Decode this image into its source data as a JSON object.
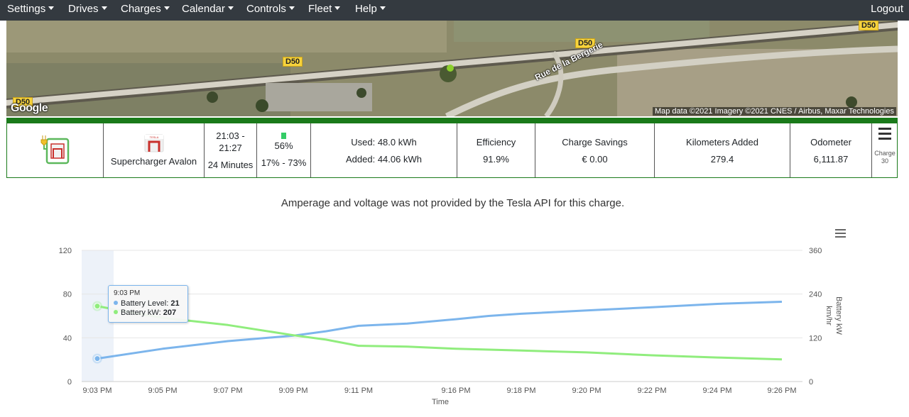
{
  "nav": {
    "items": [
      {
        "label": "Settings"
      },
      {
        "label": "Drives"
      },
      {
        "label": "Charges"
      },
      {
        "label": "Calendar"
      },
      {
        "label": "Controls"
      },
      {
        "label": "Fleet"
      },
      {
        "label": "Help"
      }
    ],
    "logout": "Logout"
  },
  "map": {
    "road_labels": [
      "D50",
      "D50",
      "D50",
      "D50"
    ],
    "street_label": "Rue de la Bergerie",
    "attribution": "Map data ©2021 Imagery ©2021 CNES / Airbus, Maxar Technologies",
    "logo": "Google"
  },
  "charge": {
    "charger_icon": "plug-charger-icon",
    "location_icon": "tesla-supercharger-icon",
    "location": "Supercharger Avalon",
    "time_range": "21:03 - 21:27",
    "duration": "24 Minutes",
    "battery_icon": "battery-icon",
    "battery_pct": "56%",
    "battery_range": "17% - 73%",
    "used": "Used: 48.0 kWh",
    "added": "Added: 44.06 kWh",
    "efficiency_label": "Efficiency",
    "efficiency_value": "91.9%",
    "savings_label": "Charge Savings",
    "savings_value": "€ 0.00",
    "km_label": "Kilometers Added",
    "km_value": "279.4",
    "odometer_label": "Odometer",
    "odometer_value": "6,111.87",
    "menu_icon": "hamburger-menu-icon",
    "charge_label": "Charge",
    "charge_number": "30"
  },
  "notice": "Amperage and voltage was not provided by the Tesla API for this charge.",
  "chart_menu_icon": "hamburger-menu-icon",
  "tooltip": {
    "time": "9:03 PM",
    "row1_label": "Battery Level: ",
    "row1_value": "21",
    "row2_label": "Battery kW: ",
    "row2_value": "207"
  },
  "colors": {
    "battery_level": "#7cb5ec",
    "battery_kw": "#90ed7d",
    "nav_bg": "#343a40",
    "accent_green": "#1a7a1a"
  },
  "chart_data": {
    "type": "line",
    "xlabel": "Time",
    "x_ticks": [
      "9:03 PM",
      "9:05 PM",
      "9:07 PM",
      "9:09 PM",
      "9:11 PM",
      "9:16 PM",
      "9:18 PM",
      "9:20 PM",
      "9:22 PM",
      "9:24 PM",
      "9:26 PM"
    ],
    "y_left": {
      "ticks": [
        "0",
        "40",
        "80",
        "120"
      ],
      "range": [
        0,
        120
      ]
    },
    "y_right": {
      "ticks": [
        "0",
        "120",
        "240",
        "360"
      ],
      "range": [
        0,
        360
      ],
      "labels": [
        "Battery kW",
        "km/hr"
      ]
    },
    "grid": true,
    "series": [
      {
        "name": "Battery Level",
        "axis": "left",
        "color": "#7cb5ec",
        "x_index": [
          0,
          1,
          2,
          3,
          3.5,
          4,
          4.5,
          5,
          5.5,
          6,
          7,
          8,
          9,
          10
        ],
        "values": [
          21,
          30,
          37,
          42,
          46,
          51,
          53,
          57,
          60,
          62,
          65,
          68,
          71,
          73
        ]
      },
      {
        "name": "Battery kW",
        "axis": "right",
        "color": "#90ed7d",
        "x_index": [
          0,
          0.5,
          1,
          2,
          3,
          3.5,
          4,
          4.5,
          5,
          6,
          7,
          8,
          9,
          10
        ],
        "values": [
          207,
          190,
          175,
          155,
          127,
          115,
          98,
          96,
          90,
          85,
          80,
          72,
          66,
          61
        ]
      }
    ]
  }
}
